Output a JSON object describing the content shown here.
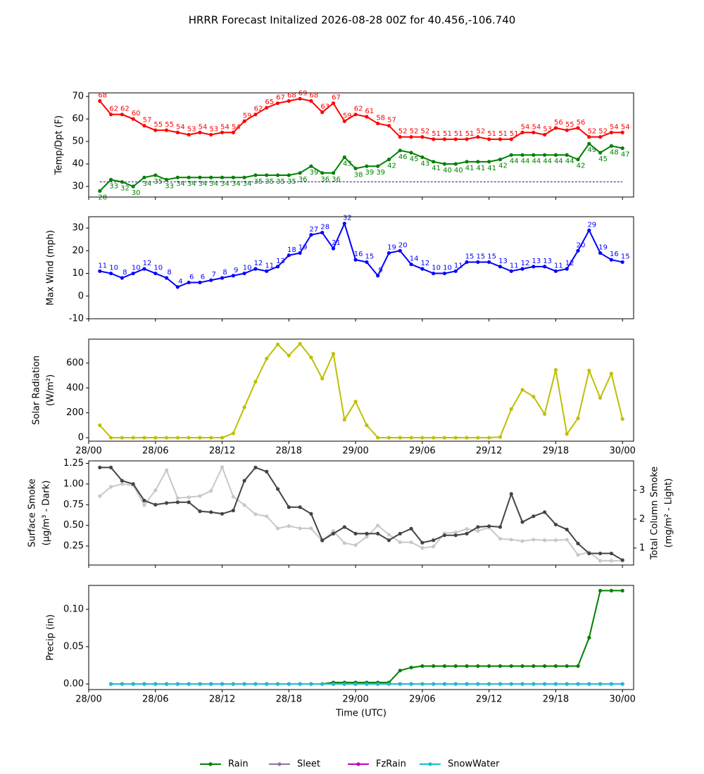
{
  "title": "HRRR Forecast Initalized 2026-08-28 00Z for 40.456,-106.740",
  "chart_data": [
    {
      "type": "line",
      "ylabel": [
        "Temp/Dpt (F)"
      ],
      "x": [
        1,
        2,
        3,
        4,
        5,
        6,
        7,
        8,
        9,
        10,
        11,
        12,
        13,
        14,
        15,
        16,
        17,
        18,
        19,
        20,
        21,
        22,
        23,
        24,
        25,
        26,
        27,
        28,
        29,
        30,
        31,
        32,
        33,
        34,
        35,
        36,
        37,
        38,
        39,
        40,
        41,
        42,
        43,
        44,
        45,
        46,
        47,
        48
      ],
      "xlim": [
        0,
        49
      ],
      "xticks": [
        0,
        6,
        12,
        18,
        24,
        30,
        36,
        42,
        48
      ],
      "ylim": [
        25.3,
        71.6
      ],
      "yticks": [
        30,
        40,
        50,
        60,
        70
      ],
      "reference_line": {
        "value": 32,
        "color": "#00008b"
      },
      "series": [
        {
          "name": "Temp",
          "color": "#ff0000",
          "labels": "above",
          "values": [
            68,
            62,
            62,
            60,
            57,
            55,
            55,
            54,
            53,
            54,
            53,
            54,
            54,
            59,
            62,
            65,
            67,
            68,
            69,
            68,
            63,
            67,
            59,
            62,
            61,
            58,
            57,
            52,
            52,
            52,
            51,
            51,
            51,
            51,
            52,
            51,
            51,
            51,
            54,
            54,
            53,
            56,
            55,
            56,
            52,
            52,
            54,
            54
          ]
        },
        {
          "name": "Dewpoint",
          "color": "#008000",
          "labels": "below",
          "values": [
            28,
            33,
            32,
            30,
            34,
            35,
            33,
            34,
            34,
            34,
            34,
            34,
            34,
            34,
            35,
            35,
            35,
            35,
            36,
            39,
            36,
            36,
            43,
            38,
            39,
            39,
            42,
            46,
            45,
            43,
            41,
            40,
            40,
            41,
            41,
            41,
            42,
            44,
            44,
            44,
            44,
            44,
            44,
            42,
            49,
            45,
            48,
            47
          ]
        }
      ]
    },
    {
      "type": "line",
      "ylabel": [
        "Max Wind (mph)"
      ],
      "x": [
        1,
        2,
        3,
        4,
        5,
        6,
        7,
        8,
        9,
        10,
        11,
        12,
        13,
        14,
        15,
        16,
        17,
        18,
        19,
        20,
        21,
        22,
        23,
        24,
        25,
        26,
        27,
        28,
        29,
        30,
        31,
        32,
        33,
        34,
        35,
        36,
        37,
        38,
        39,
        40,
        41,
        42,
        43,
        44,
        45,
        46,
        47,
        48
      ],
      "xlim": [
        0,
        49
      ],
      "xticks": [
        0,
        6,
        12,
        18,
        24,
        30,
        36,
        42,
        48
      ],
      "ylim": [
        -10,
        35
      ],
      "yticks": [
        -10,
        0,
        10,
        20,
        30
      ],
      "series": [
        {
          "name": "Max Wind",
          "color": "#0000ff",
          "labels": "above",
          "values": [
            11,
            10,
            8,
            10,
            12,
            10,
            8,
            4,
            6,
            6,
            7,
            8,
            9,
            10,
            12,
            11,
            13,
            18,
            19,
            27,
            28,
            21,
            32,
            16,
            15,
            9,
            19,
            20,
            14,
            12,
            10,
            10,
            11,
            15,
            15,
            15,
            13,
            11,
            12,
            13,
            13,
            11,
            12,
            20,
            29,
            19,
            16,
            15
          ]
        }
      ]
    },
    {
      "type": "line",
      "ylabel": [
        "Solar Radiation",
        "(W/m²)"
      ],
      "x": [
        1,
        2,
        3,
        4,
        5,
        6,
        7,
        8,
        9,
        10,
        11,
        12,
        13,
        14,
        15,
        16,
        17,
        18,
        19,
        20,
        21,
        22,
        23,
        24,
        25,
        26,
        27,
        28,
        29,
        30,
        31,
        32,
        33,
        34,
        35,
        36,
        37,
        38,
        39,
        40,
        41,
        42,
        43,
        44,
        45,
        46,
        47,
        48
      ],
      "xlim": [
        0,
        49
      ],
      "xticks": [
        {
          "value": 0,
          "label": "28/00"
        },
        {
          "value": 6,
          "label": "28/06"
        },
        {
          "value": 12,
          "label": "28/12"
        },
        {
          "value": 18,
          "label": "28/18"
        },
        {
          "value": 24,
          "label": "29/00"
        },
        {
          "value": 30,
          "label": "29/06"
        },
        {
          "value": 36,
          "label": "29/12"
        },
        {
          "value": 42,
          "label": "29/18"
        },
        {
          "value": 48,
          "label": "30/00"
        }
      ],
      "ylim": [
        -28,
        792
      ],
      "yticks": [
        0,
        200,
        400,
        600
      ],
      "series": [
        {
          "name": "Solar Radiation",
          "color": "#bfbf00",
          "values": [
            100,
            0,
            0,
            0,
            0,
            0,
            0,
            0,
            0,
            0,
            0,
            0,
            35,
            245,
            450,
            635,
            750,
            660,
            755,
            645,
            475,
            675,
            145,
            290,
            100,
            0,
            0,
            0,
            0,
            0,
            0,
            0,
            0,
            0,
            0,
            0,
            5,
            230,
            385,
            330,
            190,
            545,
            30,
            155,
            540,
            320,
            515,
            150
          ]
        }
      ]
    },
    {
      "type": "line",
      "ylabel": [
        "Surface Smoke",
        "(μg/m³ - Dark)"
      ],
      "y2label": [
        "Total Column Smoke",
        "(mg/m² - Light)"
      ],
      "x": [
        1,
        2,
        3,
        4,
        5,
        6,
        7,
        8,
        9,
        10,
        11,
        12,
        13,
        14,
        15,
        16,
        17,
        18,
        19,
        20,
        21,
        22,
        23,
        24,
        25,
        26,
        27,
        28,
        29,
        30,
        31,
        32,
        33,
        34,
        35,
        36,
        37,
        38,
        39,
        40,
        41,
        42,
        43,
        44,
        45,
        46,
        47,
        48
      ],
      "xlim": [
        0,
        49
      ],
      "xticks": [
        0,
        6,
        12,
        18,
        24,
        30,
        36,
        42,
        48
      ],
      "ylim": [
        0.02,
        1.28
      ],
      "yticks": [
        {
          "value": 0.25,
          "label": "0.25"
        },
        {
          "value": 0.5,
          "label": "0.50"
        },
        {
          "value": 0.75,
          "label": "0.75"
        },
        {
          "value": 1,
          "label": "1.00"
        },
        {
          "value": 1.25,
          "label": "1.25"
        }
      ],
      "y2lim": [
        0.41,
        4.02
      ],
      "y2ticks": [
        1,
        2,
        3
      ],
      "series": [
        {
          "name": "Total Column Smoke",
          "axis": "y2",
          "color": "#c8c8c8",
          "values": [
            2.8,
            3.12,
            3.22,
            3.17,
            2.49,
            3.0,
            3.7,
            2.73,
            2.76,
            2.8,
            2.98,
            3.8,
            2.78,
            2.49,
            2.17,
            2.1,
            1.68,
            1.76,
            1.68,
            1.68,
            1.24,
            1.59,
            1.17,
            1.1,
            1.39,
            1.78,
            1.46,
            1.2,
            1.2,
            1.0,
            1.05,
            1.51,
            1.54,
            1.66,
            1.59,
            1.71,
            1.32,
            1.29,
            1.24,
            1.29,
            1.27,
            1.27,
            1.29,
            0.76,
            0.85,
            0.56,
            0.56,
            0.56
          ]
        },
        {
          "name": "Surface Smoke",
          "color": "#444444",
          "values": [
            1.2,
            1.2,
            1.04,
            1.0,
            0.8,
            0.75,
            0.77,
            0.78,
            0.78,
            0.67,
            0.66,
            0.64,
            0.68,
            1.04,
            1.2,
            1.15,
            0.94,
            0.72,
            0.72,
            0.64,
            0.32,
            0.4,
            0.48,
            0.4,
            0.4,
            0.4,
            0.32,
            0.4,
            0.46,
            0.29,
            0.32,
            0.38,
            0.38,
            0.4,
            0.48,
            0.49,
            0.48,
            0.88,
            0.54,
            0.61,
            0.66,
            0.51,
            0.45,
            0.28,
            0.16,
            0.16,
            0.16,
            0.08
          ]
        }
      ]
    },
    {
      "type": "line",
      "ylabel": [
        "Precip (in)"
      ],
      "xlabel": "Time (UTC)",
      "x": [
        1,
        2,
        3,
        4,
        5,
        6,
        7,
        8,
        9,
        10,
        11,
        12,
        13,
        14,
        15,
        16,
        17,
        18,
        19,
        20,
        21,
        22,
        23,
        24,
        25,
        26,
        27,
        28,
        29,
        30,
        31,
        32,
        33,
        34,
        35,
        36,
        37,
        38,
        39,
        40,
        41,
        42,
        43,
        44,
        45,
        46,
        47,
        48
      ],
      "xlim": [
        0,
        49
      ],
      "xticks": [
        {
          "value": 0,
          "label": "28/00"
        },
        {
          "value": 6,
          "label": "28/06"
        },
        {
          "value": 12,
          "label": "28/12"
        },
        {
          "value": 18,
          "label": "28/18"
        },
        {
          "value": 24,
          "label": "29/00"
        },
        {
          "value": 30,
          "label": "29/06"
        },
        {
          "value": 36,
          "label": "29/12"
        },
        {
          "value": 42,
          "label": "29/18"
        },
        {
          "value": 48,
          "label": "30/00"
        }
      ],
      "ylim": [
        -0.0075,
        0.132
      ],
      "yticks": [
        {
          "value": 0,
          "label": "0.00"
        },
        {
          "value": 0.05,
          "label": "0.05"
        },
        {
          "value": 0.1,
          "label": "0.10"
        }
      ],
      "legend": "bottom",
      "series": [
        {
          "name": "Rain",
          "color": "#008000",
          "values": [
            null,
            0,
            0,
            0,
            0,
            0,
            0,
            0,
            0,
            0,
            0,
            0,
            0,
            0,
            0,
            0,
            0,
            0,
            0,
            0,
            0,
            0.002,
            0.002,
            0.002,
            0.002,
            0.002,
            0.002,
            0.018,
            0.022,
            0.024,
            0.024,
            0.024,
            0.024,
            0.024,
            0.024,
            0.024,
            0.024,
            0.024,
            0.024,
            0.024,
            0.024,
            0.024,
            0.024,
            0.024,
            0.062,
            0.125,
            0.125,
            0.125
          ]
        },
        {
          "name": "Sleet",
          "color": "#8a75a0",
          "values": [
            null,
            0,
            0,
            0,
            0,
            0,
            0,
            0,
            0,
            0,
            0,
            0,
            0,
            0,
            0,
            0,
            0,
            0,
            0,
            0,
            0,
            0,
            0,
            0,
            0,
            0,
            0,
            0,
            0,
            0,
            0,
            0,
            0,
            0,
            0,
            0,
            0,
            0,
            0,
            0,
            0,
            0,
            0,
            0,
            0,
            0,
            0,
            0
          ]
        },
        {
          "name": "FzRain",
          "color": "#bf00bf",
          "values": [
            null,
            0,
            0,
            0,
            0,
            0,
            0,
            0,
            0,
            0,
            0,
            0,
            0,
            0,
            0,
            0,
            0,
            0,
            0,
            0,
            0,
            0,
            0,
            0,
            0,
            0,
            0,
            0,
            0,
            0,
            0,
            0,
            0,
            0,
            0,
            0,
            0,
            0,
            0,
            0,
            0,
            0,
            0,
            0,
            0,
            0,
            0,
            0
          ]
        },
        {
          "name": "SnowWater",
          "color": "#17becf",
          "values": [
            null,
            0,
            0,
            0,
            0,
            0,
            0,
            0,
            0,
            0,
            0,
            0,
            0,
            0,
            0,
            0,
            0,
            0,
            0,
            0,
            0,
            0,
            0,
            0,
            0,
            0,
            0,
            0,
            0,
            0,
            0,
            0,
            0,
            0,
            0,
            0,
            0,
            0,
            0,
            0,
            0,
            0,
            0,
            0,
            0,
            0,
            0,
            0
          ]
        }
      ]
    }
  ]
}
